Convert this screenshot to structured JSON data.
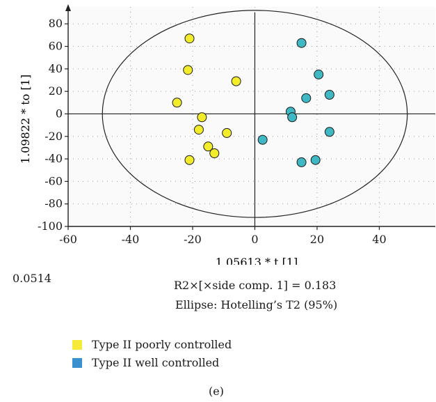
{
  "chart_data": {
    "type": "scatter",
    "xlabel": "1.05613 * t [1]",
    "ylabel": "1.09822 * to [1]",
    "xlim": [
      -60,
      58
    ],
    "ylim": [
      -100,
      95
    ],
    "xticks": [
      -60,
      -40,
      -20,
      0,
      20,
      40
    ],
    "yticks": [
      -100,
      -80,
      -60,
      -40,
      -20,
      0,
      20,
      40,
      60,
      80
    ],
    "grid": "dotted",
    "ellipse": {
      "label": "Hotelling's T2 (95%)",
      "cx": 0,
      "cy": 0,
      "rx": 49,
      "ry": 92
    },
    "series": [
      {
        "name": "Type II poorly controlled",
        "color": "#f2ec2a",
        "points": [
          [
            -21,
            67
          ],
          [
            -21.5,
            39
          ],
          [
            -6,
            29
          ],
          [
            -25,
            10
          ],
          [
            -17,
            -3
          ],
          [
            -18,
            -14
          ],
          [
            -9,
            -17
          ],
          [
            -15,
            -29
          ],
          [
            -13,
            -35
          ],
          [
            -21,
            -41
          ]
        ]
      },
      {
        "name": "Type II well controlled",
        "color": "#40b8c4",
        "points": [
          [
            15,
            63
          ],
          [
            20.5,
            35
          ],
          [
            24,
            17
          ],
          [
            16.5,
            14
          ],
          [
            11.5,
            2
          ],
          [
            12,
            -3
          ],
          [
            24,
            -16
          ],
          [
            2.5,
            -23
          ],
          [
            19.5,
            -41
          ],
          [
            15,
            -43
          ]
        ]
      }
    ]
  },
  "annotations": {
    "left_value": "0.0514",
    "r2_text": "R2×[×side comp. 1] = 0.183",
    "ellipse_text": "Ellipse: Hotelling’s T2 (95%)",
    "panel_label": "(e)"
  },
  "legend": {
    "items": [
      {
        "label": "Type II poorly controlled",
        "color": "#f5e93a"
      },
      {
        "label": "Type II well controlled",
        "color": "#3a8fce"
      }
    ]
  }
}
